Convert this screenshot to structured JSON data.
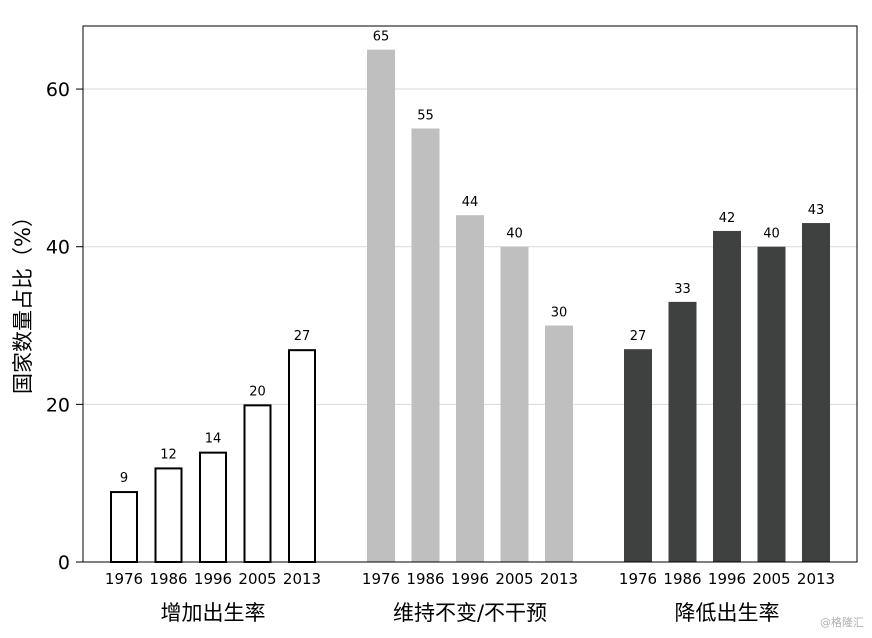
{
  "chart_data": {
    "type": "bar",
    "ylabel": "国家数量占比（%）",
    "ylim": [
      0,
      68
    ],
    "yticks": [
      0,
      20,
      40,
      60
    ],
    "grid": true,
    "groups": [
      {
        "name": "增加出生率",
        "style": "outline",
        "fill": "#ffffff",
        "stroke": "#000000",
        "categories": [
          "1976",
          "1986",
          "1996",
          "2005",
          "2013"
        ],
        "values": [
          9,
          12,
          14,
          20,
          27
        ]
      },
      {
        "name": "维持不变/不干预",
        "style": "light",
        "fill": "#bfbfbf",
        "stroke": "none",
        "categories": [
          "1976",
          "1986",
          "1996",
          "2005",
          "2013"
        ],
        "values": [
          65,
          55,
          44,
          40,
          30
        ]
      },
      {
        "name": "降低出生率",
        "style": "dark",
        "fill": "#3f4040",
        "stroke": "none",
        "categories": [
          "1976",
          "1986",
          "1996",
          "2005",
          "2013"
        ],
        "values": [
          27,
          33,
          42,
          40,
          43
        ]
      }
    ]
  },
  "watermark": "@格隆汇"
}
